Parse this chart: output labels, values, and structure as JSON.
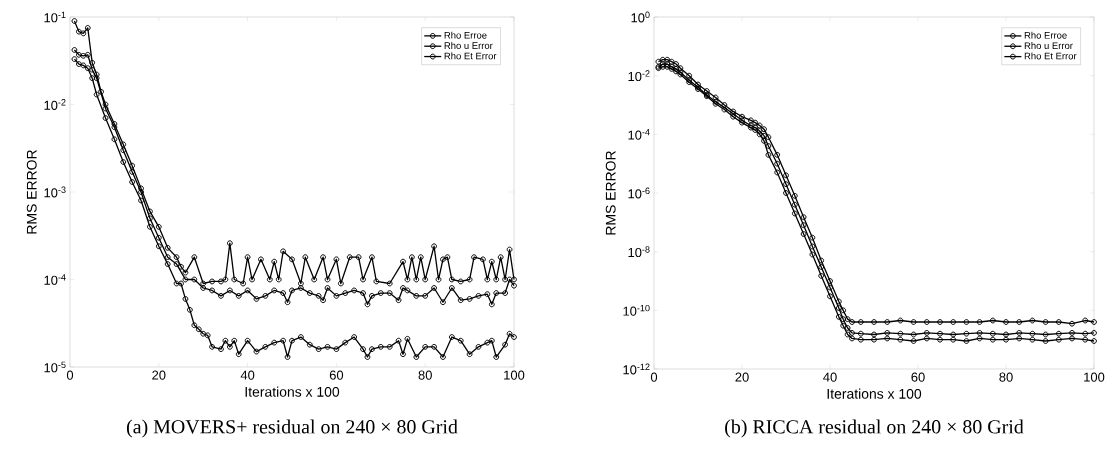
{
  "chart_data": [
    {
      "type": "line",
      "xlabel": "Iterations x 100",
      "ylabel": "RMS ERROR",
      "log": "y",
      "legend": "top right",
      "marker": "circle",
      "line_style": "solid",
      "xlim": [
        0,
        100
      ],
      "xticks": [
        0,
        20,
        40,
        60,
        80,
        100
      ],
      "ylim": [
        1e-05,
        0.1
      ],
      "yticks": [
        {
          "value": 1e-05,
          "label": "10$^{-5}$"
        },
        {
          "value": 0.0001,
          "label": "10$^{-4}$"
        },
        {
          "value": 0.001,
          "label": "10$^{-3}$"
        },
        {
          "value": 0.01,
          "label": "10$^{-2}$"
        },
        {
          "value": 0.1,
          "label": "10$^{-1}$"
        }
      ],
      "annotations": [
        "(a) MOVERS+ residual on 240 × 80 Grid"
      ],
      "series": [
        {
          "name": "Rho Erroe",
          "color": "#000000",
          "x": [
            1,
            2,
            3,
            4,
            5,
            6,
            7,
            8,
            10,
            12,
            14,
            16,
            18,
            20,
            22,
            24,
            25,
            26,
            28,
            30,
            32,
            34,
            35,
            36,
            37,
            39,
            40,
            41,
            43,
            45,
            46,
            47,
            48,
            50,
            52,
            53,
            55,
            57,
            58,
            60,
            61,
            63,
            65,
            66,
            68,
            69,
            72,
            75,
            76,
            77,
            78,
            79,
            80,
            82,
            83,
            84,
            85,
            86,
            88,
            90,
            91,
            93,
            94,
            95,
            96,
            97,
            98,
            99,
            100
          ],
          "values": [
            0.09,
            0.068,
            0.065,
            0.075,
            0.03,
            0.022,
            0.014,
            0.01,
            0.006,
            0.0035,
            0.002,
            0.0011,
            0.0006,
            0.0004,
            0.00023,
            0.00018,
            0.00014,
            0.00012,
            0.00018,
            9e-05,
            9.5e-05,
            9.5e-05,
            0.0001,
            0.00026,
            0.0001,
            9e-05,
            0.00018,
            0.0001,
            0.00017,
            0.0001,
            0.00016,
            0.0001,
            0.00021,
            0.00017,
            9e-05,
            0.00018,
            0.0001,
            0.00018,
            0.0001,
            0.00017,
            9e-05,
            0.00018,
            0.00018,
            0.0001,
            0.00018,
            9.5e-05,
            9e-05,
            0.00016,
            0.0001,
            0.00018,
            0.0001,
            0.00018,
            0.0001,
            0.00024,
            0.0001,
            0.00017,
            0.00018,
            0.0001,
            9.5e-05,
            0.0001,
            0.00018,
            0.00017,
            0.0001,
            0.00016,
            0.0001,
            0.00018,
            0.0001,
            0.00022,
            0.0001
          ]
        },
        {
          "name": "Rho u Error",
          "color": "#000000",
          "x": [
            1,
            2,
            3,
            4,
            5,
            6,
            8,
            10,
            12,
            14,
            16,
            18,
            20,
            22,
            24,
            26,
            28,
            30,
            32,
            34,
            36,
            38,
            40,
            42,
            44,
            46,
            48,
            49,
            50,
            52,
            54,
            56,
            57,
            58,
            60,
            62,
            64,
            66,
            67,
            68,
            70,
            72,
            74,
            75,
            76,
            78,
            80,
            82,
            84,
            86,
            88,
            90,
            92,
            94,
            95,
            96,
            98,
            99,
            100
          ],
          "values": [
            0.042,
            0.037,
            0.036,
            0.037,
            0.025,
            0.02,
            0.009,
            0.0055,
            0.003,
            0.0017,
            0.001,
            0.0005,
            0.0003,
            0.00018,
            0.00015,
            0.0001,
            0.0001,
            8e-05,
            7.5e-05,
            6.5e-05,
            7.5e-05,
            6.5e-05,
            7.5e-05,
            6e-05,
            6.5e-05,
            7.5e-05,
            7e-05,
            5.5e-05,
            7.5e-05,
            8e-05,
            7e-05,
            6.5e-05,
            5.8e-05,
            8e-05,
            6.5e-05,
            7e-05,
            7.5e-05,
            7e-05,
            5.2e-05,
            6.5e-05,
            7e-05,
            7e-05,
            5.8e-05,
            8e-05,
            7.5e-05,
            6.5e-05,
            6.5e-05,
            8e-05,
            5.5e-05,
            8e-05,
            5.8e-05,
            6e-05,
            6.5e-05,
            6.8e-05,
            5.2e-05,
            7e-05,
            7e-05,
            0.0001,
            8.5e-05
          ]
        },
        {
          "name": "Rho Et Error",
          "color": "#000000",
          "x": [
            1,
            2,
            3,
            4,
            5,
            6,
            8,
            10,
            12,
            14,
            16,
            18,
            20,
            22,
            24,
            25,
            26,
            27,
            28,
            29,
            30,
            31,
            32,
            34,
            35,
            36,
            37,
            38,
            40,
            42,
            44,
            46,
            48,
            49,
            50,
            52,
            54,
            56,
            58,
            60,
            62,
            64,
            66,
            67,
            68,
            70,
            72,
            74,
            75,
            76,
            78,
            80,
            82,
            84,
            86,
            88,
            90,
            92,
            94,
            95,
            96,
            98,
            99,
            100
          ],
          "values": [
            0.033,
            0.029,
            0.028,
            0.026,
            0.02,
            0.013,
            0.007,
            0.004,
            0.0022,
            0.0013,
            0.0008,
            0.0004,
            0.00024,
            0.00015,
            9e-05,
            9e-05,
            6e-05,
            4.5e-05,
            3e-05,
            2.7e-05,
            2.4e-05,
            2.3e-05,
            1.7e-05,
            1.6e-05,
            2e-05,
            1.7e-05,
            2e-05,
            1.4e-05,
            2e-05,
            1.5e-05,
            1.7e-05,
            1.9e-05,
            2e-05,
            1.3e-05,
            2e-05,
            2.2e-05,
            1.8e-05,
            1.6e-05,
            1.7e-05,
            1.6e-05,
            1.9e-05,
            2.2e-05,
            1.6e-05,
            1.3e-05,
            1.6e-05,
            1.7e-05,
            1.7e-05,
            2e-05,
            1.4e-05,
            2.1e-05,
            1.3e-05,
            1.7e-05,
            1.7e-05,
            1.3e-05,
            2.2e-05,
            2e-05,
            1.4e-05,
            1.7e-05,
            1.9e-05,
            2e-05,
            1.3e-05,
            1.8e-05,
            2.4e-05,
            2.2e-05
          ]
        }
      ]
    },
    {
      "type": "line",
      "xlabel": "Iterations x 100",
      "ylabel": "RMS ERROR",
      "log": "y",
      "legend": "top right",
      "marker": "circle",
      "line_style": "solid",
      "xlim": [
        0,
        100
      ],
      "xticks": [
        0,
        20,
        40,
        60,
        80,
        100
      ],
      "ylim": [
        1e-12,
        1
      ],
      "yticks": [
        {
          "value": 1e-12,
          "label": "10$^{-12}$"
        },
        {
          "value": 1e-10,
          "label": "10$^{-10}$"
        },
        {
          "value": 1e-08,
          "label": "10$^{-8}$"
        },
        {
          "value": 1e-06,
          "label": "10$^{-6}$"
        },
        {
          "value": 0.0001,
          "label": "10$^{-4}$"
        },
        {
          "value": 0.01,
          "label": "10$^{-2}$"
        },
        {
          "value": 1,
          "label": "10$^{0}$"
        }
      ],
      "annotations": [
        "(b) RICCA residual on 240 × 80 Grid"
      ],
      "series": [
        {
          "name": "Rho Erroe",
          "color": "#000000",
          "x": [
            1,
            2,
            3,
            4,
            5,
            6,
            8,
            10,
            12,
            14,
            16,
            18,
            20,
            22,
            23,
            24,
            25,
            26,
            28,
            30,
            32,
            34,
            36,
            38,
            40,
            42,
            43,
            44,
            45,
            47,
            50,
            53,
            56,
            59,
            62,
            65,
            68,
            71,
            74,
            77,
            80,
            83,
            86,
            89,
            92,
            95,
            98,
            100
          ],
          "values": [
            0.03,
            0.035,
            0.035,
            0.03,
            0.025,
            0.018,
            0.01,
            0.005,
            0.003,
            0.0018,
            0.001,
            0.0006,
            0.0004,
            0.0003,
            0.00025,
            0.0002,
            0.00015,
            8e-05,
            2e-05,
            4e-06,
            8e-07,
            1.5e-07,
            3e-08,
            5e-09,
            1e-09,
            2e-10,
            1e-10,
            5e-11,
            4e-11,
            4e-11,
            4e-11,
            4e-11,
            4.5e-11,
            4e-11,
            4e-11,
            4e-11,
            4e-11,
            4e-11,
            4e-11,
            4.5e-11,
            4e-11,
            4e-11,
            4.5e-11,
            4e-11,
            4e-11,
            3.5e-11,
            4.5e-11,
            4e-11
          ]
        },
        {
          "name": "Rho u Error",
          "color": "#000000",
          "x": [
            1,
            2,
            3,
            4,
            5,
            6,
            8,
            10,
            12,
            14,
            16,
            18,
            20,
            22,
            23,
            24,
            25,
            26,
            28,
            30,
            32,
            34,
            36,
            38,
            40,
            42,
            43,
            44,
            45,
            47,
            50,
            53,
            56,
            59,
            62,
            65,
            68,
            71,
            74,
            77,
            80,
            83,
            86,
            89,
            92,
            95,
            98,
            100
          ],
          "values": [
            0.02,
            0.025,
            0.025,
            0.02,
            0.017,
            0.013,
            0.007,
            0.004,
            0.0022,
            0.0013,
            null,
            0.0005,
            0.0003,
            0.0002,
            0.00017,
            0.00013,
            9e-05,
            4e-05,
            1e-05,
            2e-06,
            4e-07,
            8e-08,
            1.5e-08,
            3e-09,
            6e-10,
            1.2e-10,
            5e-11,
            2.5e-11,
            1.7e-11,
            1.6e-11,
            1.5e-11,
            1.7e-11,
            1.6e-11,
            1.5e-11,
            1.7e-11,
            1.6e-11,
            1.5e-11,
            1.6e-11,
            1.7e-11,
            1.6e-11,
            1.5e-11,
            1.7e-11,
            1.6e-11,
            1.5e-11,
            1.6e-11,
            1.7e-11,
            1.6e-11,
            1.7e-11
          ]
        },
        {
          "name": "Rho Et Error",
          "color": "#000000",
          "x": [
            1,
            2,
            3,
            4,
            5,
            6,
            8,
            10,
            12,
            14,
            16,
            18,
            20,
            22,
            23,
            24,
            25,
            26,
            28,
            30,
            32,
            34,
            36,
            38,
            40,
            42,
            43,
            44,
            45,
            47,
            50,
            53,
            56,
            59,
            62,
            65,
            68,
            71,
            74,
            77,
            80,
            83,
            86,
            89,
            92,
            95,
            98,
            100
          ],
          "values": [
            0.018,
            0.02,
            0.02,
            0.017,
            0.014,
            0.011,
            0.006,
            0.0035,
            0.002,
            0.0011,
            0.0007,
            0.0004,
            0.00025,
            0.00017,
            0.00014,
            0.0001,
            6e-05,
            2e-05,
            5e-06,
            1e-06,
            2e-07,
            4e-08,
            8e-09,
            1.5e-09,
            3e-10,
            6e-11,
            3e-11,
            1.5e-11,
            1.1e-11,
            1e-11,
            1e-11,
            1.1e-11,
            1e-11,
            9e-12,
            1.1e-11,
            1e-11,
            1e-11,
            9e-12,
            1.1e-11,
            1e-11,
            1e-11,
            1.1e-11,
            1e-11,
            9e-12,
            1e-11,
            1.1e-11,
            1e-11,
            9e-12
          ]
        }
      ]
    }
  ]
}
